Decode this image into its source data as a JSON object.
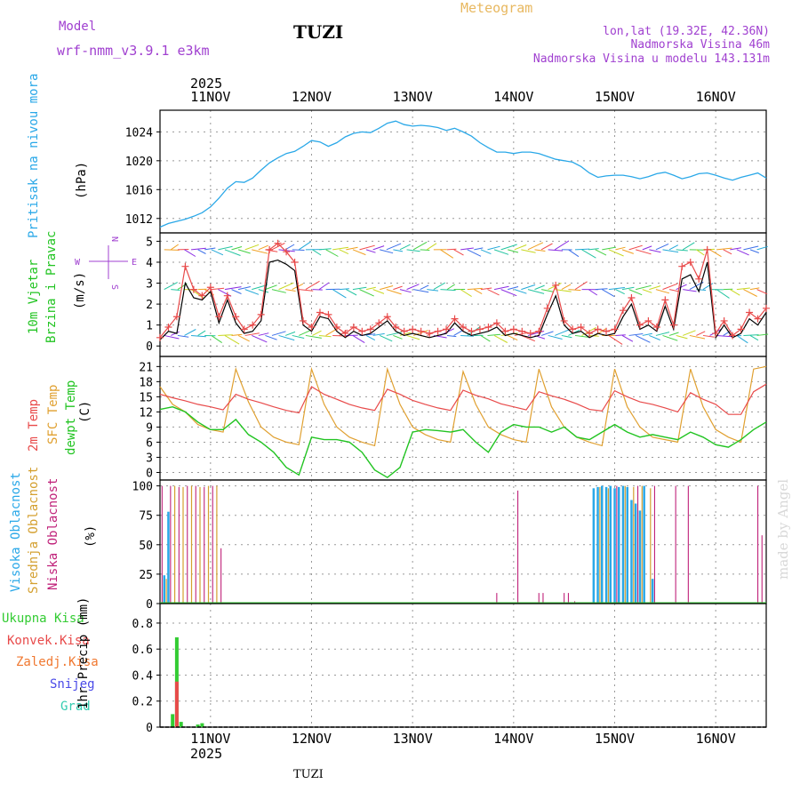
{
  "header": {
    "model_label": "Model",
    "model_name": "wrf-nmm_v3.9.1 e3km",
    "station": "TUZI",
    "title": "Meteogram",
    "lonlat": "lon,lat (19.32E, 42.36N)",
    "altitude": "Nadmorska Visina 46m",
    "model_altitude": "Nadmorska Visina u modelu 143.131m"
  },
  "time_axis": {
    "year": "2025",
    "day_labels": [
      "11NOV",
      "12NOV",
      "13NOV",
      "14NOV",
      "15NOV",
      "16NOV"
    ],
    "start_hour": 0,
    "end_hour": 144
  },
  "footer": {
    "station": "TUZI",
    "credit": "made by Angel"
  },
  "colors": {
    "pressure": "#2aa8e8",
    "temp": "#e84a4a",
    "sfc": "#e0a030",
    "dewpt": "#22c422",
    "high_cloud": "#2aa8e8",
    "mid_cloud": "#d4a030",
    "low_cloud": "#c0227a",
    "precip_total": "#33cc33",
    "precip_conv": "#e84a4a",
    "precip_ice": "#f07830",
    "snow": "#4a4ae8",
    "grad": "#33ccb0",
    "wind_gust": "#e84a4a",
    "wind_mean": "#000000",
    "purple_text": "#a040d0"
  },
  "chart_data": [
    {
      "type": "line",
      "panel": "pressure",
      "ylabel_title": "Pritisak na nivou mora",
      "ylabel_unit": "(hPa)",
      "ylim": [
        1010,
        1027
      ],
      "yticks": [
        1012,
        1016,
        1020,
        1024
      ],
      "series": [
        {
          "name": "pressure",
          "x": [
            0,
            2,
            4,
            6,
            8,
            10,
            12,
            14,
            16,
            18,
            20,
            22,
            24,
            26,
            28,
            30,
            32,
            34,
            36,
            38,
            40,
            42,
            44,
            46,
            48,
            50,
            52,
            54,
            56,
            58,
            60,
            62,
            64,
            66,
            68,
            70,
            72,
            74,
            76,
            78,
            80,
            82,
            84,
            86,
            88,
            90,
            92,
            94,
            96,
            98,
            100,
            102,
            104,
            106,
            108,
            110,
            112,
            114,
            116,
            118,
            120,
            122,
            124,
            126,
            128,
            130,
            132,
            134,
            136,
            138,
            140,
            142,
            144
          ],
          "values": [
            1010.8,
            1011.3,
            1011.6,
            1011.9,
            1012.3,
            1012.8,
            1013.6,
            1014.8,
            1016.2,
            1017.1,
            1017.0,
            1017.6,
            1018.7,
            1019.7,
            1020.4,
            1021.0,
            1021.3,
            1022.0,
            1022.8,
            1022.6,
            1022.0,
            1022.5,
            1023.3,
            1023.8,
            1024.0,
            1023.9,
            1024.5,
            1025.2,
            1025.5,
            1025.0,
            1024.8,
            1024.9,
            1024.8,
            1024.6,
            1024.2,
            1024.5,
            1024.0,
            1023.4,
            1022.5,
            1021.8,
            1021.2,
            1021.2,
            1021.0,
            1021.2,
            1021.2,
            1021.0,
            1020.6,
            1020.2,
            1020.0,
            1019.8,
            1019.2,
            1018.3,
            1017.7,
            1017.9,
            1018.0,
            1018.0,
            1017.8,
            1017.5,
            1017.8,
            1018.2,
            1018.4,
            1018.0,
            1017.5,
            1017.8,
            1018.2,
            1018.3,
            1018.0,
            1017.6,
            1017.3,
            1017.7,
            1018.0,
            1018.3,
            1017.6
          ]
        }
      ]
    },
    {
      "type": "line",
      "panel": "wind",
      "ylabel_title": "10m Vjetar",
      "ylabel_title2": "Brzina i Pravac",
      "ylabel_unit": "(m/s)",
      "compass": {
        "w": "W",
        "e": "E",
        "n": "N",
        "s": "S"
      },
      "ylim": [
        -0.5,
        5.4
      ],
      "yticks": [
        0,
        1,
        2,
        3,
        4,
        5
      ],
      "reference_levels": [
        0.5,
        2.7,
        4.6
      ],
      "series": [
        {
          "name": "gust",
          "x": [
            0,
            2,
            4,
            6,
            8,
            10,
            12,
            14,
            16,
            18,
            20,
            22,
            24,
            26,
            28,
            30,
            32,
            34,
            36,
            38,
            40,
            42,
            44,
            46,
            48,
            50,
            52,
            54,
            56,
            58,
            60,
            62,
            64,
            66,
            68,
            70,
            72,
            74,
            76,
            78,
            80,
            82,
            84,
            86,
            88,
            90,
            92,
            94,
            96,
            98,
            100,
            102,
            104,
            106,
            108,
            110,
            112,
            114,
            116,
            118,
            120,
            122,
            124,
            126,
            128,
            130,
            132,
            134,
            136,
            138,
            140,
            142,
            144
          ],
          "values": [
            0.4,
            0.9,
            1.4,
            3.8,
            2.7,
            2.4,
            2.8,
            1.4,
            2.4,
            1.4,
            0.8,
            1.0,
            1.5,
            4.6,
            4.9,
            4.5,
            4.0,
            1.2,
            0.9,
            1.6,
            1.5,
            0.9,
            0.6,
            0.9,
            0.7,
            0.8,
            1.1,
            1.4,
            0.9,
            0.7,
            0.8,
            0.7,
            0.6,
            0.7,
            0.8,
            1.3,
            0.9,
            0.7,
            0.8,
            0.9,
            1.1,
            0.7,
            0.8,
            0.7,
            0.6,
            0.7,
            1.8,
            2.9,
            1.2,
            0.8,
            0.9,
            0.6,
            0.8,
            0.7,
            0.8,
            1.7,
            2.3,
            1.0,
            1.2,
            0.9,
            2.2,
            1.0,
            3.8,
            4.0,
            3.2,
            4.6,
            0.6,
            1.2,
            0.5,
            0.8,
            1.6,
            1.3,
            1.8
          ]
        },
        {
          "name": "mean",
          "x": [
            0,
            2,
            4,
            6,
            8,
            10,
            12,
            14,
            16,
            18,
            20,
            22,
            24,
            26,
            28,
            30,
            32,
            34,
            36,
            38,
            40,
            42,
            44,
            46,
            48,
            50,
            52,
            54,
            56,
            58,
            60,
            62,
            64,
            66,
            68,
            70,
            72,
            74,
            76,
            78,
            80,
            82,
            84,
            86,
            88,
            90,
            92,
            94,
            96,
            98,
            100,
            102,
            104,
            106,
            108,
            110,
            112,
            114,
            116,
            118,
            120,
            122,
            124,
            126,
            128,
            130,
            132,
            134,
            136,
            138,
            140,
            142,
            144
          ],
          "values": [
            0.3,
            0.7,
            0.6,
            3.0,
            2.3,
            2.2,
            2.6,
            1.1,
            2.2,
            1.1,
            0.6,
            0.7,
            1.2,
            4.0,
            4.1,
            3.9,
            3.6,
            1.0,
            0.7,
            1.4,
            1.3,
            0.7,
            0.4,
            0.7,
            0.5,
            0.6,
            0.9,
            1.2,
            0.7,
            0.5,
            0.6,
            0.5,
            0.4,
            0.5,
            0.6,
            1.1,
            0.7,
            0.5,
            0.6,
            0.7,
            0.9,
            0.5,
            0.6,
            0.5,
            0.4,
            0.5,
            1.5,
            2.4,
            1.0,
            0.6,
            0.7,
            0.4,
            0.6,
            0.5,
            0.6,
            1.4,
            2.0,
            0.8,
            1.0,
            0.7,
            1.9,
            0.8,
            3.2,
            3.4,
            2.6,
            4.0,
            0.4,
            1.0,
            0.4,
            0.6,
            1.3,
            1.0,
            1.6
          ]
        }
      ]
    },
    {
      "type": "line",
      "panel": "temperature",
      "ylabel_t2m": "2m Temp",
      "ylabel_sfc": "SFC Temp",
      "ylabel_dew": "dewpt Temp",
      "ylabel_unit": "(C)",
      "ylim": [
        -1.5,
        23
      ],
      "yticks": [
        0,
        3,
        6,
        9,
        12,
        15,
        18,
        21
      ],
      "series": [
        {
          "name": "2m Temp",
          "x": [
            0,
            3,
            6,
            9,
            12,
            15,
            18,
            21,
            24,
            27,
            30,
            33,
            36,
            39,
            42,
            45,
            48,
            51,
            54,
            57,
            60,
            63,
            66,
            69,
            72,
            75,
            78,
            81,
            84,
            87,
            90,
            93,
            96,
            99,
            102,
            105,
            108,
            111,
            114,
            117,
            120,
            123,
            126,
            129,
            132,
            135,
            138,
            141,
            144
          ],
          "values": [
            15.5,
            14.8,
            14.2,
            13.5,
            13.0,
            12.4,
            15.5,
            14.5,
            13.8,
            13.0,
            12.3,
            11.8,
            17.0,
            15.5,
            14.5,
            13.5,
            12.8,
            12.3,
            16.5,
            15.5,
            14.3,
            13.5,
            12.8,
            12.3,
            16.3,
            15.3,
            14.6,
            13.6,
            13.0,
            12.4,
            16.0,
            15.2,
            14.5,
            13.6,
            12.5,
            12.2,
            16.2,
            15.0,
            14.0,
            13.5,
            12.8,
            12.0,
            15.8,
            14.5,
            13.5,
            11.5,
            11.5,
            16.0,
            17.5
          ]
        },
        {
          "name": "SFC Temp",
          "x": [
            0,
            3,
            6,
            9,
            12,
            15,
            18,
            21,
            24,
            27,
            30,
            33,
            36,
            39,
            42,
            45,
            48,
            51,
            54,
            57,
            60,
            63,
            66,
            69,
            72,
            75,
            78,
            81,
            84,
            87,
            90,
            93,
            96,
            99,
            102,
            105,
            108,
            111,
            114,
            117,
            120,
            123,
            126,
            129,
            132,
            135,
            138,
            141,
            144
          ],
          "values": [
            17.0,
            13.5,
            12.0,
            9.5,
            8.5,
            8.0,
            20.5,
            14.0,
            9.0,
            7.0,
            6.0,
            5.5,
            20.5,
            13.5,
            9.0,
            7.0,
            6.0,
            5.3,
            20.5,
            13.5,
            9.0,
            7.5,
            6.5,
            6.0,
            20.0,
            13.5,
            9.0,
            7.5,
            6.5,
            6.0,
            20.5,
            13.0,
            9.0,
            7.0,
            6.0,
            5.3,
            20.5,
            13.0,
            9.0,
            7.0,
            6.5,
            6.0,
            20.5,
            13.0,
            8.5,
            7.0,
            6.0,
            20.5,
            21.0
          ]
        },
        {
          "name": "dewpt Temp",
          "x": [
            0,
            3,
            6,
            9,
            12,
            15,
            18,
            21,
            24,
            27,
            30,
            33,
            36,
            39,
            42,
            45,
            48,
            51,
            54,
            57,
            60,
            63,
            66,
            69,
            72,
            75,
            78,
            81,
            84,
            87,
            90,
            93,
            96,
            99,
            102,
            105,
            108,
            111,
            114,
            117,
            120,
            123,
            126,
            129,
            132,
            135,
            138,
            141,
            144
          ],
          "values": [
            12.5,
            13.0,
            12.0,
            10.0,
            8.5,
            8.5,
            10.5,
            7.5,
            6.0,
            4.0,
            1.0,
            -0.5,
            7.0,
            6.5,
            6.5,
            6.0,
            4.0,
            0.5,
            -1.0,
            1.0,
            8.0,
            8.5,
            8.3,
            8.0,
            8.5,
            6.0,
            4.0,
            8.0,
            9.5,
            9.0,
            9.0,
            8.0,
            9.0,
            7.0,
            6.5,
            8.0,
            9.5,
            8.0,
            7.0,
            7.5,
            7.0,
            6.5,
            8.0,
            7.0,
            5.5,
            5.0,
            6.5,
            8.5,
            10.0
          ]
        }
      ]
    },
    {
      "type": "bar",
      "panel": "clouds",
      "ylabel_high": "Visoka Oblacnost",
      "ylabel_mid": "Srednja Oblacnost",
      "ylabel_low": "Niska Oblacnost",
      "ylabel_unit": "(%)",
      "ylim": [
        0,
        105
      ],
      "yticks": [
        0,
        25,
        50,
        75,
        100
      ],
      "series": [
        {
          "name": "Visoka Oblacnost",
          "x": [
            1,
            2,
            24,
            60,
            95,
            103,
            104,
            105,
            106,
            107,
            108,
            109,
            110,
            111,
            112,
            113,
            114,
            115,
            117
          ],
          "values": [
            24,
            78,
            1,
            1,
            1,
            98,
            99,
            100,
            99,
            100,
            98,
            99,
            100,
            99,
            88,
            85,
            79,
            100,
            21
          ]
        },
        {
          "name": "Srednja Oblacnost",
          "x": [
            1.5,
            3.5,
            5.5,
            7.5,
            9.5,
            11.5,
            13.5,
            104.5,
            106.5,
            110.5,
            112.5,
            114.5,
            116.5
          ],
          "values": [
            21,
            100,
            99,
            100,
            99,
            100,
            100,
            99,
            98,
            100,
            99,
            100,
            98
          ]
        },
        {
          "name": "Niska Oblacnost",
          "x": [
            0.5,
            2.5,
            4.5,
            6.5,
            8.5,
            10.5,
            12.5,
            14.5,
            98.5,
            80,
            85,
            90,
            91,
            96,
            97,
            108.5,
            113.5,
            117.5,
            122.5,
            125.5,
            142,
            143
          ],
          "values": [
            100,
            100,
            99,
            100,
            100,
            99,
            100,
            47,
            2,
            9,
            96,
            9,
            9,
            9,
            9,
            100,
            100,
            100,
            100,
            100,
            100,
            58
          ]
        }
      ]
    },
    {
      "type": "bar",
      "panel": "precipitation",
      "legend": [
        "Ukupna Kisa",
        "Konvek.Kisa",
        "Zaledj.Kisa",
        "Snijeg",
        "Grad"
      ],
      "ylabel": "1hr Precip (mm)",
      "ylim": [
        0,
        0.95
      ],
      "yticks": [
        0,
        0.2,
        0.4,
        0.6,
        0.8
      ],
      "series": [
        {
          "name": "Ukupna Kisa",
          "x": [
            3,
            4,
            5,
            9,
            10
          ],
          "values": [
            0.1,
            0.69,
            0.04,
            0.02,
            0.03
          ]
        },
        {
          "name": "Konvek.Kisa",
          "x": [
            4
          ],
          "values": [
            0.35
          ]
        }
      ]
    }
  ]
}
